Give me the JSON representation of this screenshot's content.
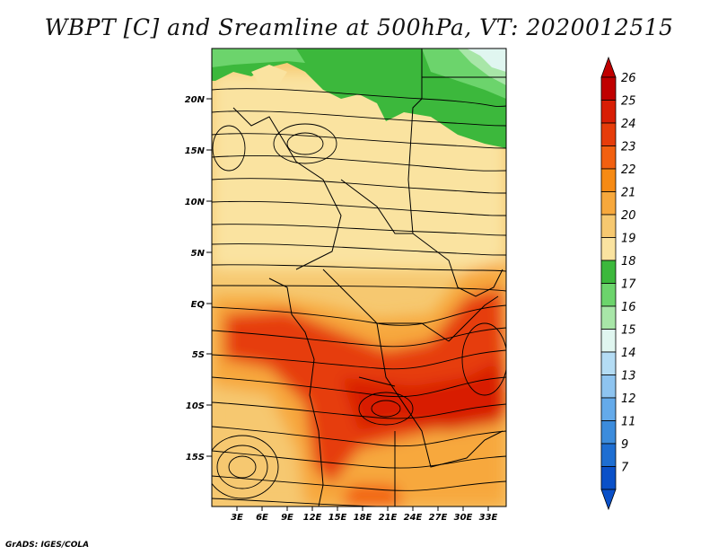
{
  "title": "WBPT [C] and Sreamline at 500hPa, VT: 2020012515",
  "footer": "GrADS: IGES/COLA",
  "map": {
    "lat_labels": [
      "20N",
      "15N",
      "10N",
      "5N",
      "EQ",
      "5S",
      "10S",
      "15S"
    ],
    "lon_labels": [
      "3E",
      "6E",
      "9E",
      "12E",
      "15E",
      "18E",
      "21E",
      "24E",
      "27E",
      "30E",
      "33E"
    ]
  },
  "colorbar": {
    "labels": [
      "26",
      "25",
      "24",
      "23",
      "22",
      "21",
      "20",
      "19",
      "18",
      "17",
      "16",
      "15",
      "14",
      "13",
      "12",
      "11",
      "9",
      "7"
    ],
    "colors": [
      "#c00000",
      "#d81e05",
      "#e63c0a",
      "#f26010",
      "#f68a14",
      "#f7a83c",
      "#f6c870",
      "#fae3a0",
      "#3cb83c",
      "#6cd46c",
      "#a8e6a8",
      "#e0f6f0",
      "#b4dcf4",
      "#8ec4f0",
      "#64aaea",
      "#3c8cdc",
      "#1e6ed2",
      "#0a50c8"
    ],
    "colors_note": "top-to-bottom"
  }
}
